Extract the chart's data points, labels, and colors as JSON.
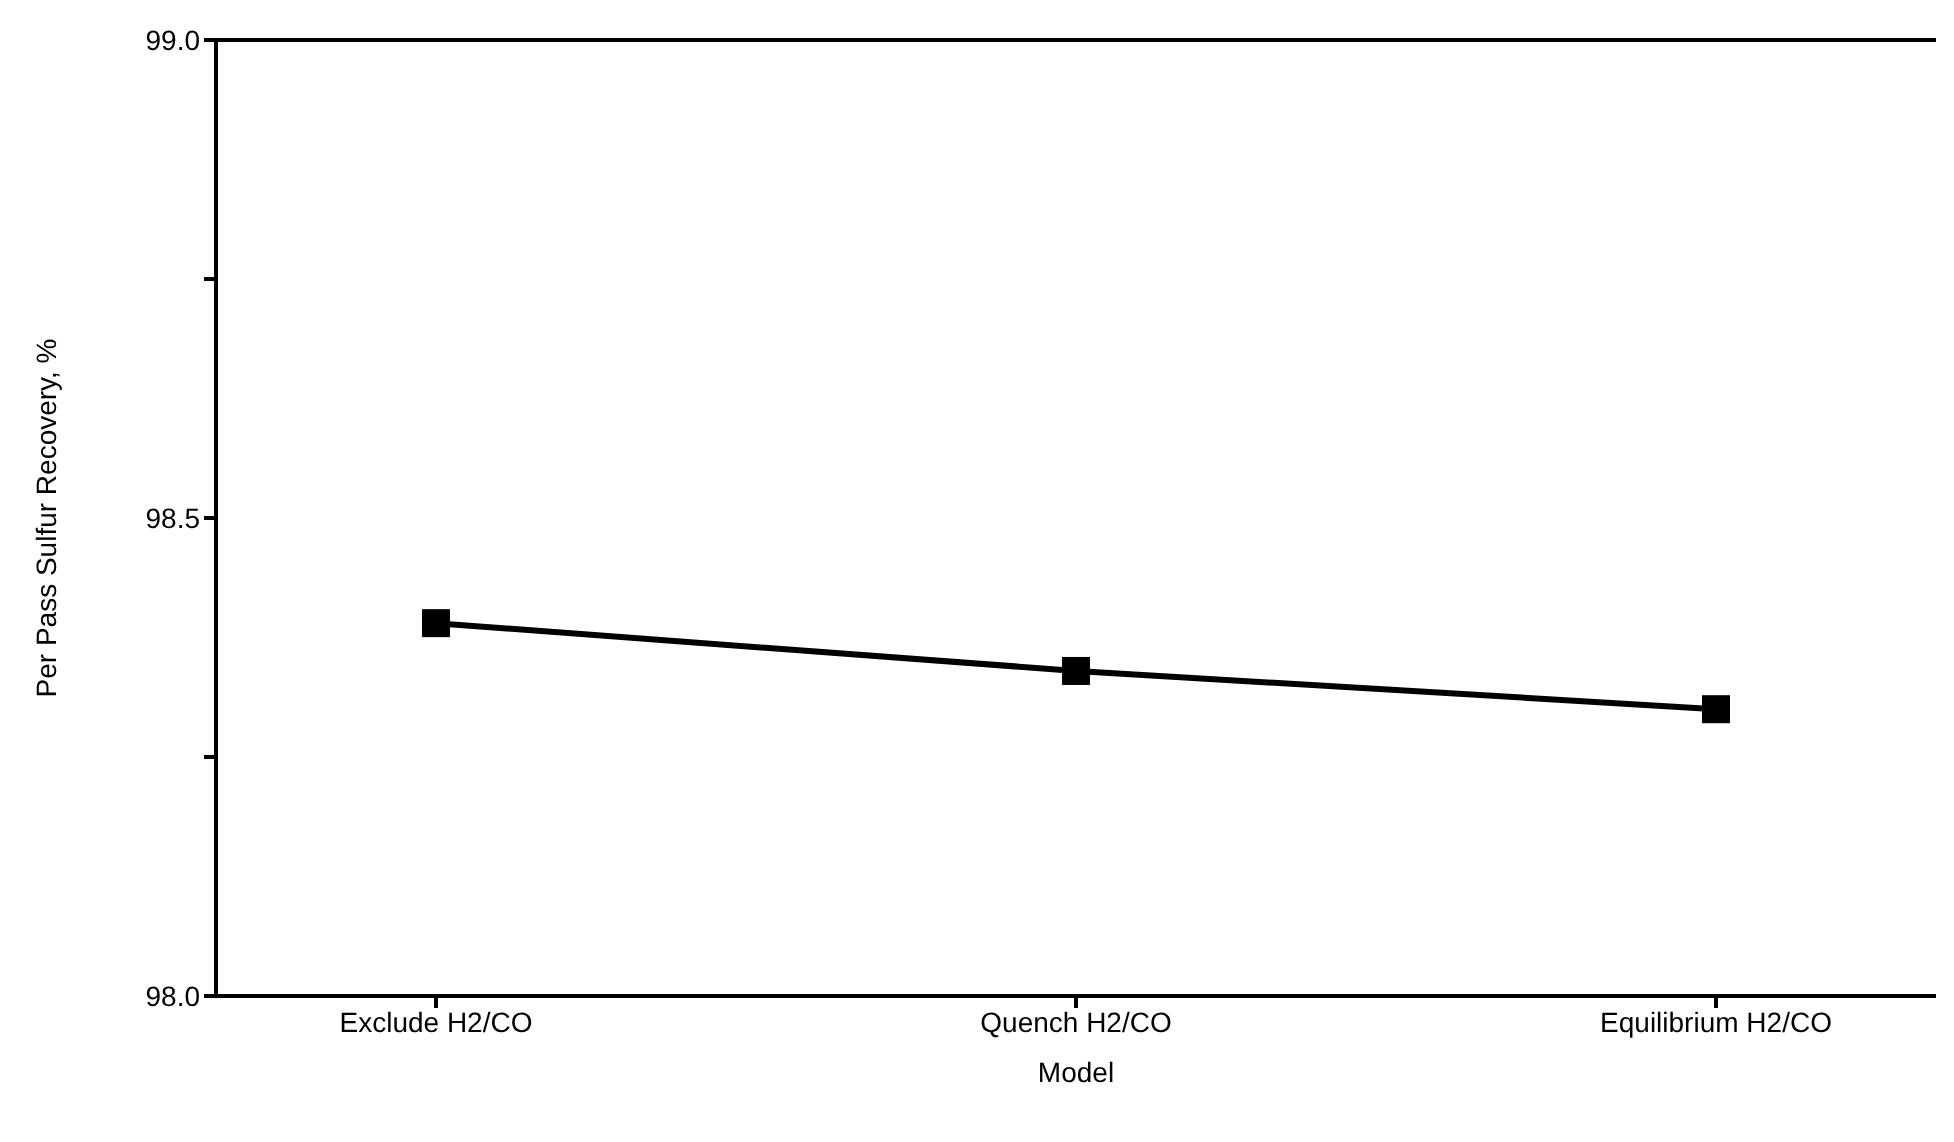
{
  "chart_data": {
    "type": "line",
    "xlabel": "Model",
    "ylabel": "Per Pass Sulfur Recovery, %",
    "categories": [
      "Exclude H2/CO",
      "Quench H2/CO",
      "Equilibrium H2/CO"
    ],
    "values": [
      98.39,
      98.34,
      98.3
    ],
    "color": "#000000",
    "ylim": [
      98.0,
      99.0
    ],
    "yticks": [
      {
        "value": 98.0,
        "label": "98.0"
      },
      {
        "value": 98.25,
        "label": null
      },
      {
        "value": 98.5,
        "label": "98.5"
      },
      {
        "value": 98.75,
        "label": null
      },
      {
        "value": 99.0,
        "label": "99.0"
      }
    ],
    "grid": false,
    "marker": "square",
    "line_style": "solid"
  }
}
